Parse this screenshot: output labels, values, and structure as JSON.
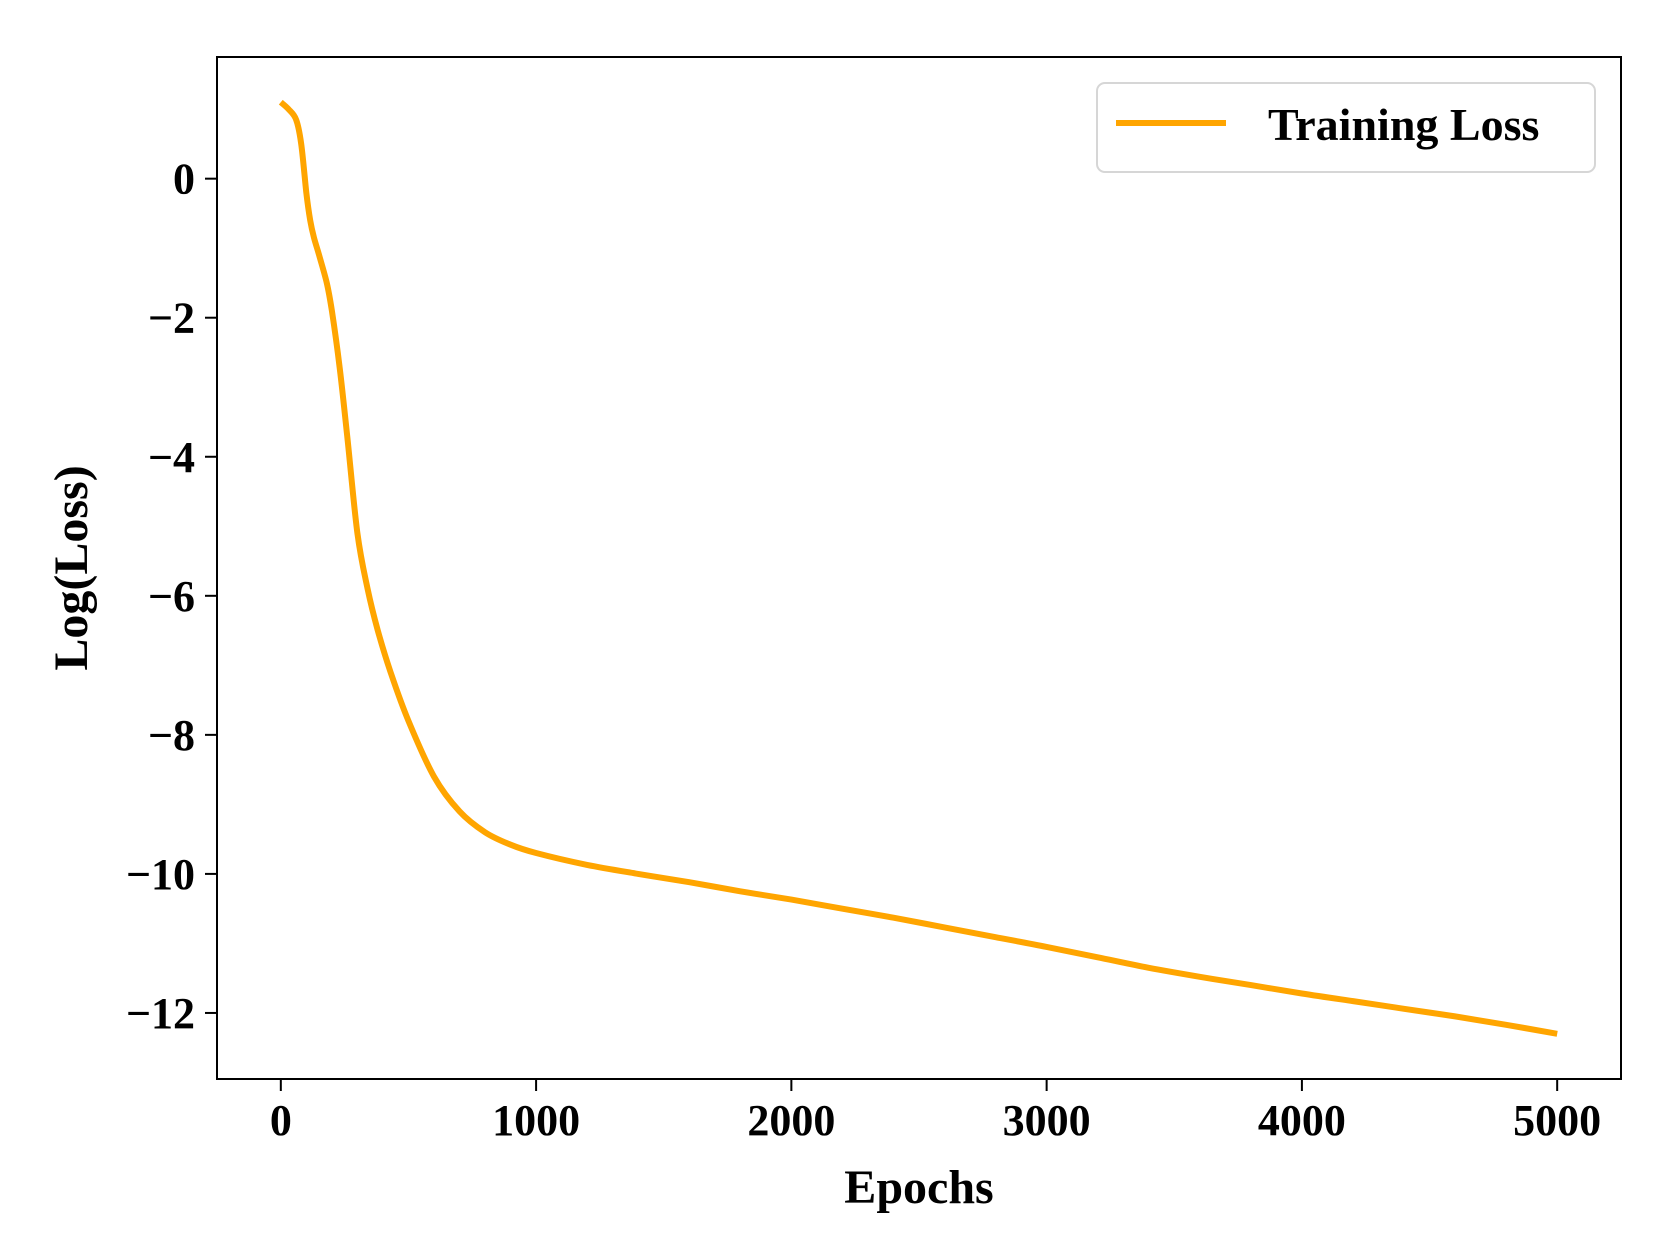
{
  "chart_data": {
    "type": "line",
    "title": "",
    "xlabel": "Epochs",
    "ylabel": "Log(Loss)",
    "xlim": [
      -250,
      5250
    ],
    "ylim": [
      -12.95,
      1.75
    ],
    "xticks": [
      0,
      1000,
      2000,
      3000,
      4000,
      5000
    ],
    "xtick_labels": [
      "0",
      "1000",
      "2000",
      "3000",
      "4000",
      "5000"
    ],
    "yticks": [
      0,
      -2,
      -4,
      -6,
      -8,
      -10,
      -12
    ],
    "ytick_labels": [
      "0",
      "−2",
      "−4",
      "−6",
      "−8",
      "−10",
      "−12"
    ],
    "grid": false,
    "legend_position": "top-right",
    "series": [
      {
        "name": "Training Loss",
        "color": "#FFA500",
        "x": [
          0,
          30,
          60,
          80,
          100,
          115,
          130,
          150,
          180,
          200,
          230,
          260,
          300,
          340,
          380,
          430,
          500,
          600,
          700,
          800,
          900,
          1000,
          1200,
          1400,
          1600,
          1800,
          2000,
          2200,
          2400,
          2600,
          2800,
          3000,
          3200,
          3400,
          3600,
          3800,
          4000,
          4200,
          4400,
          4600,
          4800,
          5000
        ],
        "y": [
          1.1,
          1.0,
          0.85,
          0.5,
          -0.2,
          -0.6,
          -0.85,
          -1.1,
          -1.5,
          -1.9,
          -2.7,
          -3.7,
          -5.1,
          -5.9,
          -6.5,
          -7.1,
          -7.8,
          -8.6,
          -9.1,
          -9.4,
          -9.58,
          -9.7,
          -9.87,
          -10.0,
          -10.12,
          -10.25,
          -10.37,
          -10.5,
          -10.63,
          -10.77,
          -10.91,
          -11.05,
          -11.2,
          -11.35,
          -11.48,
          -11.6,
          -11.72,
          -11.83,
          -11.94,
          -12.05,
          -12.17,
          -12.3
        ]
      }
    ]
  }
}
